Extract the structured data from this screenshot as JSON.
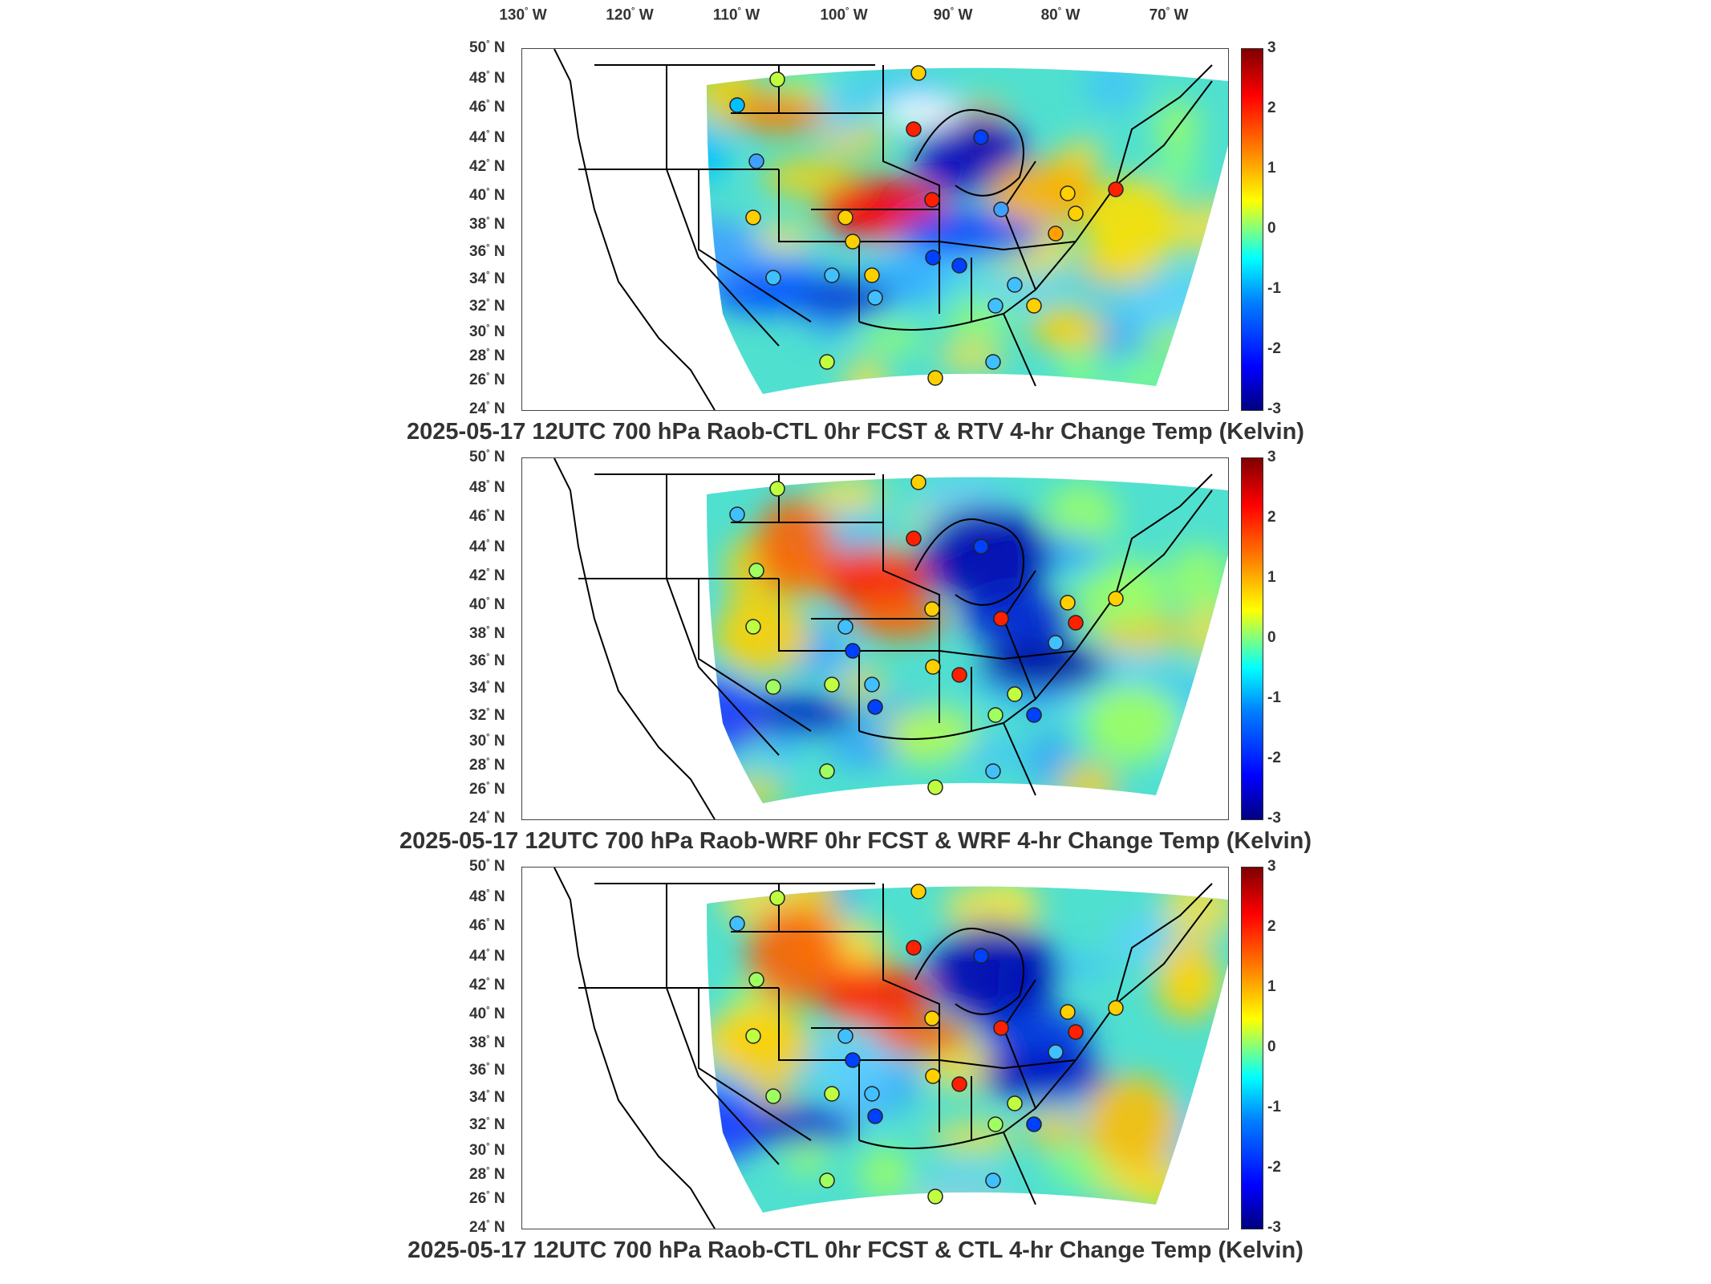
{
  "lon_labels": [
    "130",
    "120",
    "110",
    "100",
    "90",
    "80",
    "70"
  ],
  "lon_suffix": "W",
  "lat_labels": [
    "50",
    "48",
    "46",
    "44",
    "42",
    "40",
    "38",
    "36",
    "34",
    "32",
    "30",
    "28",
    "26",
    "24"
  ],
  "lat_suffix": "N",
  "colorbar": {
    "ticks": [
      "3",
      "2",
      "1",
      "0",
      "-1",
      "-2",
      "-3"
    ],
    "range": [
      -3,
      3
    ],
    "colors": [
      "#000080",
      "#0000ff",
      "#0080ff",
      "#00ffff",
      "#80ff80",
      "#ffff00",
      "#ff8000",
      "#ff0000",
      "#800000"
    ]
  },
  "panels": [
    {
      "title": "2025-05-17 12UTC 700 hPa Raob-CTL 0hr FCST & RTV 4-hr Change Temp (Kelvin)"
    },
    {
      "title": "2025-05-17 12UTC 700 hPa Raob-WRF 0hr FCST & WRF 4-hr Change Temp (Kelvin)"
    },
    {
      "title": "2025-05-17 12UTC 700 hPa Raob-CTL 0hr FCST & CTL 4-hr Change Temp (Kelvin)"
    }
  ]
}
